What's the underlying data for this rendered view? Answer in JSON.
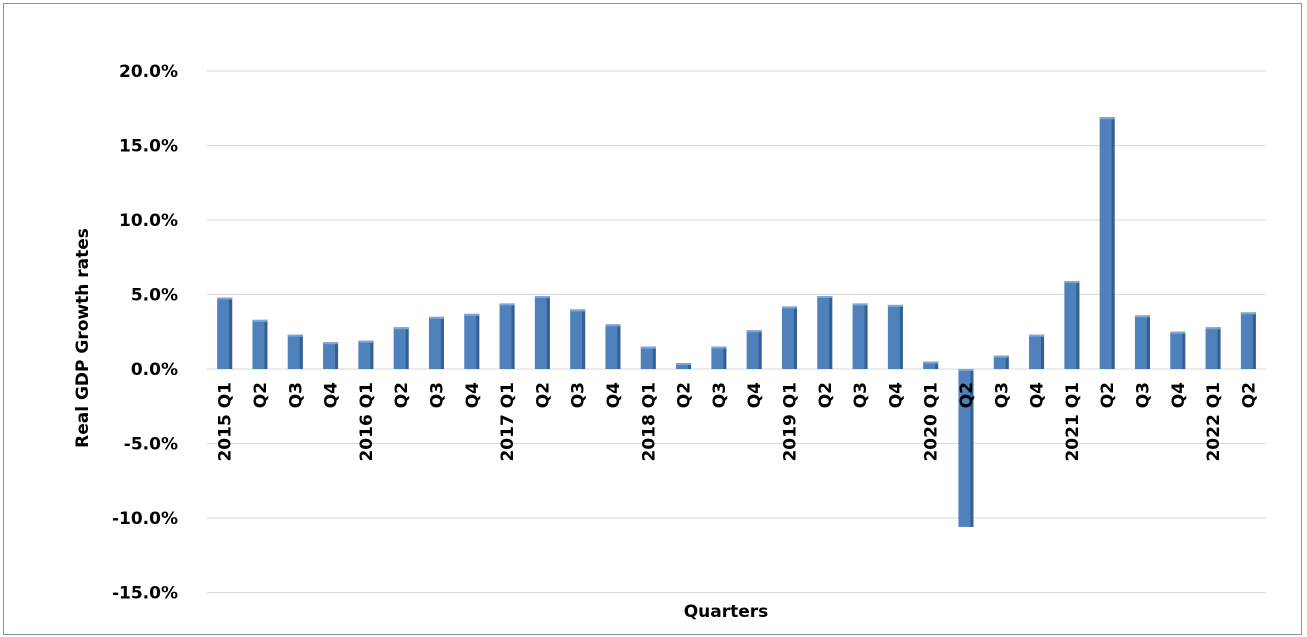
{
  "chart_data": {
    "type": "bar",
    "title": "",
    "xlabel": "Quarters",
    "ylabel": "Real GDP Growth rates",
    "ylim": [
      -15,
      20
    ],
    "yticks": [
      "20.0%",
      "15.0%",
      "10.0%",
      "5.0%",
      "0.0%",
      "-5.0%",
      "-10.0%",
      "-15.0%"
    ],
    "ytick_values": [
      20,
      15,
      10,
      5,
      0,
      -5,
      -10,
      -15
    ],
    "grid": true,
    "legend": "none",
    "bar_color": "#4f81bd",
    "categories": [
      "2015 Q1",
      "Q2",
      "Q3",
      "Q4",
      "2016 Q1",
      "Q2",
      "Q3",
      "Q4",
      "2017 Q1",
      "Q2",
      "Q3",
      "Q4",
      "2018 Q1",
      "Q2",
      "Q3",
      "Q4",
      "2019 Q1",
      "Q2",
      "Q3",
      "Q4",
      "2020 Q1",
      "Q2",
      "Q3",
      "Q4",
      "2021 Q1",
      "Q2",
      "Q3",
      "Q4",
      "2022 Q1",
      "Q2"
    ],
    "values": [
      4.8,
      3.3,
      2.3,
      1.8,
      1.9,
      2.8,
      3.5,
      3.7,
      4.4,
      4.9,
      4.0,
      3.0,
      1.5,
      0.4,
      1.5,
      2.6,
      4.2,
      4.9,
      4.4,
      4.3,
      0.5,
      -10.6,
      0.9,
      2.3,
      5.9,
      16.9,
      3.6,
      2.5,
      2.8,
      3.8
    ]
  }
}
